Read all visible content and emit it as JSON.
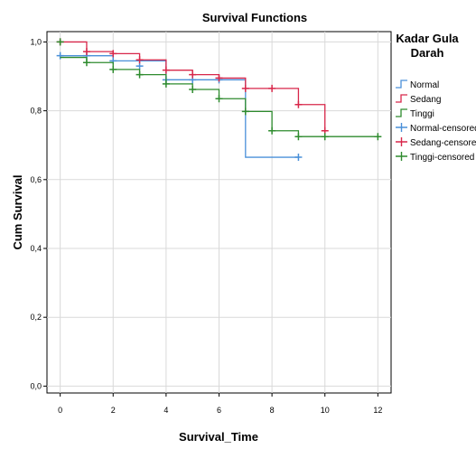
{
  "chart_data": {
    "type": "line",
    "title": "Survival Functions",
    "xlabel": "Survival_Time",
    "ylabel": "Cum Survival",
    "xlim": [
      -0.5,
      12.5
    ],
    "ylim": [
      -0.02,
      1.03
    ],
    "x_ticks": [
      "0",
      "2",
      "4",
      "6",
      "8",
      "10",
      "12"
    ],
    "x_tick_values": [
      0,
      2,
      4,
      6,
      8,
      10,
      12
    ],
    "y_ticks": [
      "0,0",
      "0,2",
      "0,4",
      "0,6",
      "0,8",
      "1,0"
    ],
    "y_tick_values": [
      0.0,
      0.2,
      0.4,
      0.6,
      0.8,
      1.0
    ],
    "grid": true,
    "legend": {
      "title": "Kadar Gula Darah",
      "title_lines": [
        "Kadar Gula",
        "Darah"
      ],
      "position": "right",
      "entries": [
        "Normal",
        "Sedang",
        "Tinggi",
        "Normal-censored",
        "Sedang-censored",
        "Tinggi-censored"
      ]
    },
    "series": [
      {
        "name": "Normal",
        "color": "#4a90d9",
        "steps": [
          [
            0,
            0.96
          ],
          [
            2,
            0.945
          ],
          [
            4,
            0.89
          ],
          [
            7,
            0.665
          ],
          [
            9,
            0.665
          ]
        ],
        "censored": [
          [
            0,
            0.96
          ],
          [
            1,
            0.96
          ],
          [
            2,
            0.945
          ],
          [
            3,
            0.93
          ],
          [
            4,
            0.89
          ],
          [
            5,
            0.89
          ],
          [
            6,
            0.89
          ],
          [
            9,
            0.665
          ]
        ]
      },
      {
        "name": "Sedang",
        "color": "#d8274a",
        "steps": [
          [
            0,
            1.0
          ],
          [
            1,
            0.99
          ],
          [
            1,
            0.972
          ],
          [
            2,
            0.966
          ],
          [
            3,
            0.948
          ],
          [
            4,
            0.918
          ],
          [
            5,
            0.905
          ],
          [
            6,
            0.895
          ],
          [
            7,
            0.865
          ],
          [
            9,
            0.818
          ],
          [
            10,
            0.742
          ],
          [
            10,
            0.742
          ]
        ],
        "censored": [
          [
            0,
            1.0
          ],
          [
            1,
            0.972
          ],
          [
            2,
            0.966
          ],
          [
            3,
            0.948
          ],
          [
            4,
            0.918
          ],
          [
            5,
            0.905
          ],
          [
            6,
            0.895
          ],
          [
            7,
            0.865
          ],
          [
            8,
            0.865
          ],
          [
            9,
            0.818
          ],
          [
            10,
            0.742
          ]
        ]
      },
      {
        "name": "Tinggi",
        "color": "#2e8b2e",
        "steps": [
          [
            0,
            0.955
          ],
          [
            1,
            0.94
          ],
          [
            2,
            0.92
          ],
          [
            3,
            0.905
          ],
          [
            4,
            0.878
          ],
          [
            5,
            0.862
          ],
          [
            6,
            0.835
          ],
          [
            7,
            0.798
          ],
          [
            8,
            0.742
          ],
          [
            9,
            0.725
          ],
          [
            12,
            0.725
          ]
        ],
        "censored": [
          [
            0,
            1.0
          ],
          [
            1,
            0.94
          ],
          [
            2,
            0.92
          ],
          [
            3,
            0.905
          ],
          [
            4,
            0.878
          ],
          [
            5,
            0.862
          ],
          [
            6,
            0.835
          ],
          [
            7,
            0.798
          ],
          [
            8,
            0.742
          ],
          [
            9,
            0.725
          ],
          [
            10,
            0.725
          ],
          [
            12,
            0.725
          ]
        ]
      }
    ]
  }
}
